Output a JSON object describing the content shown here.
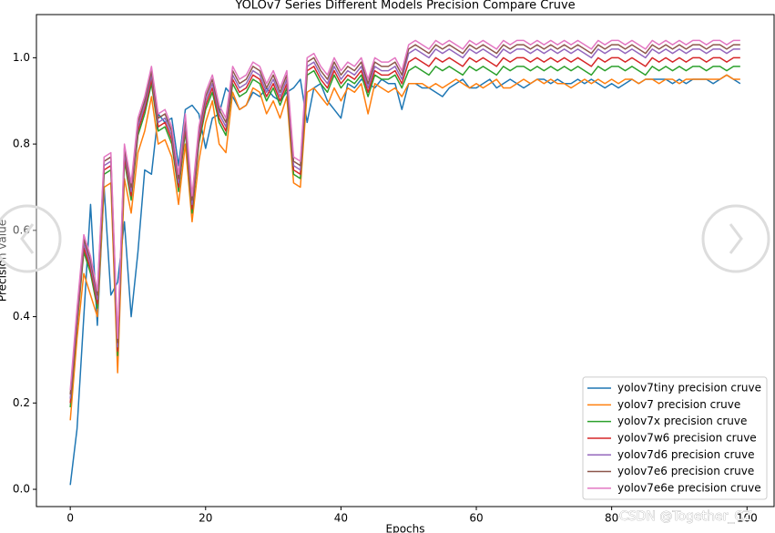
{
  "chart_data": {
    "type": "line",
    "title": "YOLOv7 Series Different Models Precision Compare Cruve",
    "xlabel": "Epochs",
    "ylabel": "Precision value",
    "watermark": "CSDN @Together_CZ",
    "legend": "lower right",
    "xlim": [
      -5,
      104
    ],
    "ylim": [
      -0.04,
      1.1
    ],
    "xticks": [
      0,
      20,
      40,
      60,
      80,
      100
    ],
    "yticks": [
      {
        "value": 0,
        "label": "0.0"
      },
      0.2,
      0.4,
      0.6,
      0.8,
      {
        "value": 1,
        "label": "1.0"
      }
    ],
    "x": [
      0,
      1,
      2,
      3,
      4,
      5,
      6,
      7,
      8,
      9,
      10,
      11,
      12,
      13,
      14,
      15,
      16,
      17,
      18,
      19,
      20,
      21,
      22,
      23,
      24,
      25,
      26,
      27,
      28,
      29,
      30,
      31,
      32,
      33,
      34,
      35,
      36,
      37,
      38,
      39,
      40,
      41,
      42,
      43,
      44,
      45,
      46,
      47,
      48,
      49,
      50,
      51,
      52,
      53,
      54,
      55,
      56,
      57,
      58,
      59,
      60,
      61,
      62,
      63,
      64,
      65,
      66,
      67,
      68,
      69,
      70,
      71,
      72,
      73,
      74,
      75,
      76,
      77,
      78,
      79,
      80,
      81,
      82,
      83,
      84,
      85,
      86,
      87,
      88,
      89,
      90,
      91,
      92,
      93,
      94,
      95,
      96,
      97,
      98,
      99
    ],
    "series": [
      {
        "name": "yolov7tiny precision cruve",
        "color": "#1f77b4",
        "values": [
          0.01,
          0.14,
          0.4,
          0.66,
          0.38,
          0.7,
          0.45,
          0.48,
          0.62,
          0.4,
          0.55,
          0.74,
          0.73,
          0.87,
          0.85,
          0.86,
          0.75,
          0.88,
          0.89,
          0.87,
          0.79,
          0.86,
          0.87,
          0.93,
          0.91,
          0.88,
          0.89,
          0.92,
          0.91,
          0.93,
          0.91,
          0.9,
          0.92,
          0.93,
          0.95,
          0.85,
          0.93,
          0.94,
          0.9,
          0.88,
          0.86,
          0.94,
          0.93,
          0.95,
          0.94,
          0.93,
          0.95,
          0.94,
          0.94,
          0.88,
          0.94,
          0.94,
          0.93,
          0.93,
          0.92,
          0.91,
          0.93,
          0.94,
          0.95,
          0.93,
          0.93,
          0.94,
          0.95,
          0.93,
          0.94,
          0.95,
          0.94,
          0.93,
          0.94,
          0.95,
          0.95,
          0.94,
          0.95,
          0.94,
          0.94,
          0.95,
          0.94,
          0.95,
          0.94,
          0.93,
          0.94,
          0.93,
          0.94,
          0.95,
          0.94,
          0.95,
          0.95,
          0.95,
          0.95,
          0.94,
          0.95,
          0.94,
          0.95,
          0.95,
          0.95,
          0.94,
          0.95,
          0.96,
          0.95,
          0.94
        ]
      },
      {
        "name": "yolov7 precision cruve",
        "color": "#ff7f0e",
        "values": [
          0.16,
          0.35,
          0.5,
          0.45,
          0.4,
          0.7,
          0.71,
          0.27,
          0.72,
          0.64,
          0.78,
          0.83,
          0.91,
          0.8,
          0.81,
          0.77,
          0.66,
          0.8,
          0.62,
          0.76,
          0.85,
          0.9,
          0.8,
          0.78,
          0.92,
          0.88,
          0.89,
          0.93,
          0.92,
          0.87,
          0.9,
          0.86,
          0.91,
          0.71,
          0.7,
          0.92,
          0.93,
          0.91,
          0.89,
          0.93,
          0.9,
          0.93,
          0.92,
          0.94,
          0.87,
          0.94,
          0.93,
          0.92,
          0.93,
          0.91,
          0.94,
          0.94,
          0.94,
          0.93,
          0.94,
          0.93,
          0.94,
          0.95,
          0.94,
          0.93,
          0.94,
          0.93,
          0.94,
          0.95,
          0.93,
          0.93,
          0.94,
          0.95,
          0.94,
          0.95,
          0.94,
          0.95,
          0.94,
          0.94,
          0.93,
          0.94,
          0.95,
          0.94,
          0.95,
          0.94,
          0.95,
          0.94,
          0.95,
          0.95,
          0.94,
          0.95,
          0.95,
          0.94,
          0.95,
          0.95,
          0.94,
          0.95,
          0.95,
          0.95,
          0.95,
          0.95,
          0.95,
          0.96,
          0.95,
          0.95
        ]
      },
      {
        "name": "yolov7x precision cruve",
        "color": "#2ca02c",
        "values": [
          0.19,
          0.38,
          0.55,
          0.5,
          0.42,
          0.73,
          0.74,
          0.31,
          0.76,
          0.67,
          0.82,
          0.87,
          0.94,
          0.83,
          0.84,
          0.8,
          0.69,
          0.83,
          0.64,
          0.8,
          0.88,
          0.92,
          0.85,
          0.82,
          0.94,
          0.91,
          0.92,
          0.95,
          0.94,
          0.9,
          0.93,
          0.89,
          0.93,
          0.73,
          0.72,
          0.96,
          0.97,
          0.94,
          0.92,
          0.96,
          0.93,
          0.95,
          0.94,
          0.96,
          0.91,
          0.96,
          0.95,
          0.95,
          0.96,
          0.93,
          0.97,
          0.98,
          0.97,
          0.96,
          0.98,
          0.97,
          0.98,
          0.97,
          0.96,
          0.98,
          0.97,
          0.98,
          0.97,
          0.96,
          0.98,
          0.97,
          0.98,
          0.98,
          0.97,
          0.98,
          0.97,
          0.98,
          0.97,
          0.98,
          0.97,
          0.98,
          0.97,
          0.96,
          0.98,
          0.97,
          0.98,
          0.98,
          0.97,
          0.98,
          0.97,
          0.96,
          0.98,
          0.97,
          0.98,
          0.97,
          0.98,
          0.97,
          0.98,
          0.98,
          0.97,
          0.98,
          0.98,
          0.97,
          0.98,
          0.98
        ]
      },
      {
        "name": "yolov7w6 precision cruve",
        "color": "#d62728",
        "values": [
          0.2,
          0.39,
          0.56,
          0.51,
          0.43,
          0.74,
          0.75,
          0.32,
          0.77,
          0.68,
          0.83,
          0.88,
          0.95,
          0.84,
          0.85,
          0.81,
          0.7,
          0.84,
          0.65,
          0.81,
          0.89,
          0.93,
          0.86,
          0.83,
          0.95,
          0.92,
          0.93,
          0.96,
          0.95,
          0.91,
          0.94,
          0.9,
          0.94,
          0.74,
          0.73,
          0.97,
          0.98,
          0.95,
          0.93,
          0.97,
          0.94,
          0.96,
          0.95,
          0.97,
          0.92,
          0.97,
          0.96,
          0.96,
          0.97,
          0.94,
          0.99,
          1.0,
          0.99,
          0.98,
          1.0,
          0.99,
          1.0,
          0.99,
          0.98,
          1.0,
          0.99,
          1.0,
          0.99,
          0.98,
          1.0,
          0.99,
          1.0,
          1.0,
          0.99,
          1.0,
          0.99,
          1.0,
          0.99,
          1.0,
          0.99,
          1.0,
          0.99,
          0.98,
          1.0,
          0.99,
          1.0,
          1.0,
          0.99,
          1.0,
          0.99,
          0.98,
          1.0,
          0.99,
          1.0,
          0.99,
          1.0,
          0.99,
          1.0,
          1.0,
          0.99,
          1.0,
          1.0,
          0.99,
          1.0,
          1.0
        ]
      },
      {
        "name": "yolov7d6 precision cruve",
        "color": "#9467bd",
        "values": [
          0.21,
          0.4,
          0.57,
          0.52,
          0.44,
          0.75,
          0.76,
          0.33,
          0.78,
          0.69,
          0.84,
          0.89,
          0.96,
          0.85,
          0.86,
          0.82,
          0.71,
          0.85,
          0.66,
          0.82,
          0.9,
          0.94,
          0.87,
          0.84,
          0.96,
          0.93,
          0.94,
          0.97,
          0.96,
          0.92,
          0.95,
          0.91,
          0.95,
          0.75,
          0.74,
          0.98,
          0.99,
          0.96,
          0.94,
          0.98,
          0.95,
          0.97,
          0.96,
          0.98,
          0.93,
          0.98,
          0.97,
          0.97,
          0.98,
          0.95,
          1.01,
          1.02,
          1.01,
          1.0,
          1.02,
          1.01,
          1.02,
          1.01,
          1.0,
          1.02,
          1.01,
          1.02,
          1.01,
          1.0,
          1.02,
          1.01,
          1.02,
          1.02,
          1.01,
          1.02,
          1.01,
          1.02,
          1.01,
          1.02,
          1.01,
          1.02,
          1.01,
          1.0,
          1.02,
          1.01,
          1.02,
          1.02,
          1.01,
          1.02,
          1.01,
          1.0,
          1.02,
          1.01,
          1.02,
          1.01,
          1.02,
          1.01,
          1.02,
          1.02,
          1.01,
          1.02,
          1.02,
          1.01,
          1.02,
          1.02
        ]
      },
      {
        "name": "yolov7e6 precision cruve",
        "color": "#8c564b",
        "values": [
          0.22,
          0.41,
          0.58,
          0.53,
          0.45,
          0.76,
          0.77,
          0.34,
          0.79,
          0.7,
          0.85,
          0.9,
          0.97,
          0.86,
          0.87,
          0.83,
          0.72,
          0.86,
          0.67,
          0.83,
          0.91,
          0.95,
          0.88,
          0.85,
          0.97,
          0.94,
          0.95,
          0.98,
          0.97,
          0.93,
          0.96,
          0.92,
          0.96,
          0.76,
          0.75,
          0.99,
          1.0,
          0.97,
          0.95,
          0.99,
          0.96,
          0.98,
          0.97,
          0.99,
          0.94,
          0.99,
          0.98,
          0.98,
          0.99,
          0.96,
          1.02,
          1.03,
          1.02,
          1.01,
          1.03,
          1.02,
          1.03,
          1.02,
          1.01,
          1.03,
          1.02,
          1.03,
          1.02,
          1.01,
          1.03,
          1.02,
          1.03,
          1.03,
          1.02,
          1.03,
          1.02,
          1.03,
          1.02,
          1.03,
          1.02,
          1.03,
          1.02,
          1.01,
          1.03,
          1.02,
          1.03,
          1.03,
          1.02,
          1.03,
          1.02,
          1.01,
          1.03,
          1.02,
          1.03,
          1.02,
          1.03,
          1.02,
          1.03,
          1.03,
          1.02,
          1.03,
          1.03,
          1.02,
          1.03,
          1.03
        ]
      },
      {
        "name": "yolov7e6e precision cruve",
        "color": "#e377c2",
        "values": [
          0.23,
          0.42,
          0.59,
          0.54,
          0.46,
          0.77,
          0.78,
          0.35,
          0.8,
          0.71,
          0.86,
          0.91,
          0.98,
          0.87,
          0.88,
          0.84,
          0.73,
          0.87,
          0.68,
          0.84,
          0.92,
          0.96,
          0.89,
          0.86,
          0.98,
          0.95,
          0.96,
          0.99,
          0.98,
          0.94,
          0.97,
          0.93,
          0.97,
          0.77,
          0.76,
          1.0,
          1.01,
          0.98,
          0.96,
          1.0,
          0.97,
          0.99,
          0.98,
          1.0,
          0.95,
          1.0,
          0.99,
          0.99,
          1.0,
          0.97,
          1.03,
          1.04,
          1.03,
          1.02,
          1.04,
          1.03,
          1.04,
          1.03,
          1.02,
          1.04,
          1.03,
          1.04,
          1.03,
          1.02,
          1.04,
          1.03,
          1.04,
          1.04,
          1.03,
          1.04,
          1.03,
          1.04,
          1.03,
          1.04,
          1.03,
          1.04,
          1.03,
          1.02,
          1.04,
          1.03,
          1.04,
          1.04,
          1.03,
          1.04,
          1.03,
          1.02,
          1.04,
          1.03,
          1.04,
          1.03,
          1.04,
          1.03,
          1.04,
          1.04,
          1.03,
          1.04,
          1.04,
          1.03,
          1.04,
          1.04
        ]
      }
    ]
  }
}
